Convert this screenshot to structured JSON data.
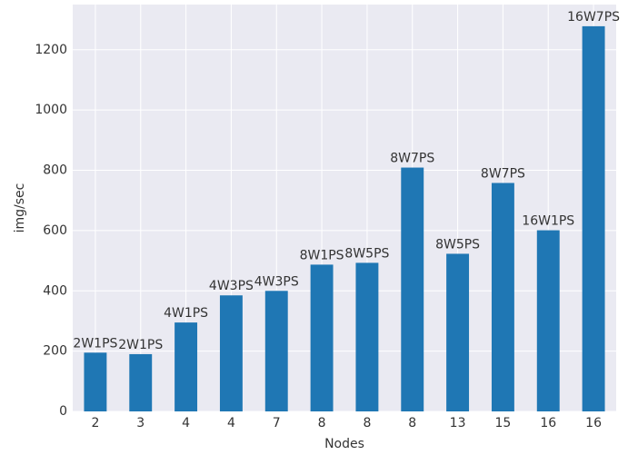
{
  "chart_data": {
    "type": "bar",
    "x_label": "Nodes",
    "y_label": "img/sec",
    "categories": [
      "2",
      "3",
      "4",
      "4",
      "7",
      "8",
      "8",
      "8",
      "13",
      "15",
      "16",
      "16"
    ],
    "values": [
      195,
      190,
      295,
      385,
      400,
      487,
      493,
      809,
      523,
      758,
      601,
      1278
    ],
    "annotations": [
      "2W1PS",
      "2W1PS",
      "4W1PS",
      "4W3PS",
      "4W3PS",
      "8W1PS",
      "8W5PS",
      "8W7PS",
      "8W5PS",
      "8W7PS",
      "16W1PS",
      "16W7PS"
    ],
    "color": "#1f77b4",
    "ylim": [
      0,
      1350
    ],
    "yticks": [
      0,
      200,
      400,
      600,
      800,
      1000,
      1200
    ],
    "grid": true
  }
}
